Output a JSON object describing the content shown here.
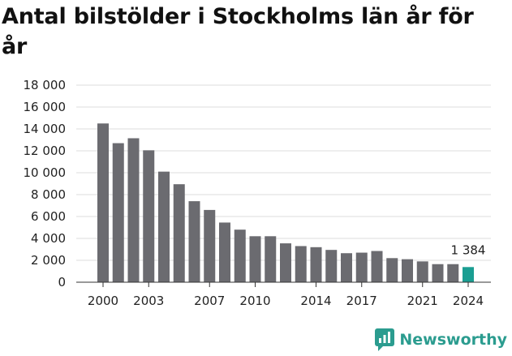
{
  "title": "Antal bilstölder i Stockholms län år för år",
  "brand": {
    "name": "Newsworthy",
    "icon": "newsworthy-logo-icon",
    "color": "#2b9c8f"
  },
  "colors": {
    "bar": "#6b6b70",
    "highlight": "#1a9e92",
    "grid": "#dddddd",
    "axis": "#333333"
  },
  "chart_data": {
    "type": "bar",
    "title": "Antal bilstölder i Stockholms län år för år",
    "xlabel": "",
    "ylabel": "",
    "categories": [
      "2000",
      "2001",
      "2002",
      "2003",
      "2004",
      "2005",
      "2006",
      "2007",
      "2008",
      "2009",
      "2010",
      "2011",
      "2012",
      "2013",
      "2014",
      "2015",
      "2016",
      "2017",
      "2018",
      "2019",
      "2020",
      "2021",
      "2022",
      "2023",
      "2024"
    ],
    "values": [
      14500,
      12700,
      13150,
      12050,
      10100,
      8950,
      7400,
      6600,
      5450,
      4800,
      4200,
      4200,
      3550,
      3300,
      3200,
      2950,
      2650,
      2700,
      2850,
      2200,
      2100,
      1900,
      1650,
      1650,
      1384
    ],
    "x_tick_labels": [
      "2000",
      "2003",
      "2007",
      "2010",
      "2014",
      "2017",
      "2021",
      "2024"
    ],
    "y_ticks": [
      0,
      2000,
      4000,
      6000,
      8000,
      10000,
      12000,
      14000,
      16000,
      18000
    ],
    "y_tick_labels": [
      "0",
      "2 000",
      "4 000",
      "6 000",
      "8 000",
      "10 000",
      "12 000",
      "14 000",
      "16 000",
      "18 000"
    ],
    "ylim": [
      0,
      18000
    ],
    "highlight": {
      "category": "2024",
      "label": "1 384"
    },
    "grid": true,
    "legend": "none"
  }
}
